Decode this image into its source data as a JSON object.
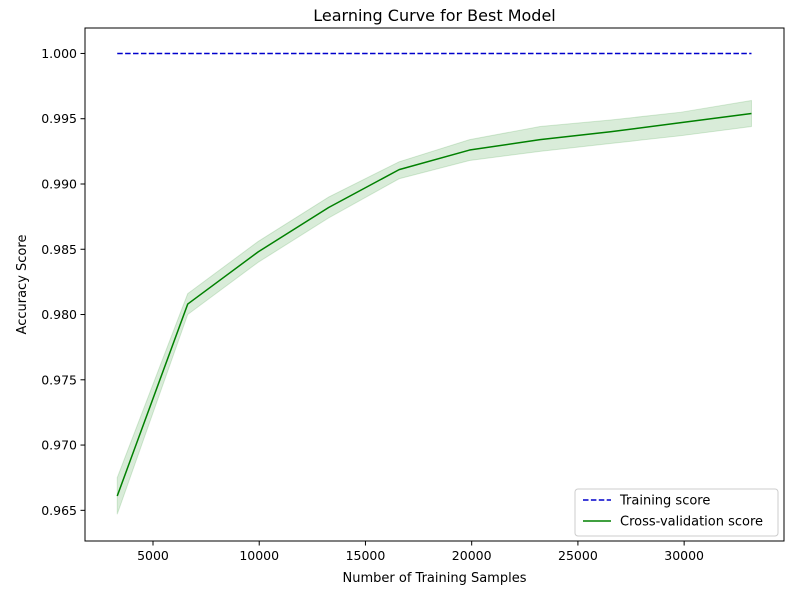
{
  "chart_data": {
    "type": "line",
    "title": "Learning Curve for Best Model",
    "xlabel": "Number of Training Samples",
    "ylabel": "Accuracy Score",
    "xlim": [
      1800,
      34700
    ],
    "ylim": [
      0.96265,
      1.00195
    ],
    "xticks": [
      5000,
      10000,
      15000,
      20000,
      25000,
      30000
    ],
    "xtick_labels": [
      "5000",
      "10000",
      "15000",
      "20000",
      "25000",
      "30000"
    ],
    "yticks": [
      0.965,
      0.97,
      0.975,
      0.98,
      0.985,
      0.99,
      0.995,
      1.0
    ],
    "ytick_labels": [
      "0.965",
      "0.970",
      "0.975",
      "0.980",
      "0.985",
      "0.990",
      "0.995",
      "1.000"
    ],
    "grid": false,
    "legend_position": "lower right",
    "x": [
      3317,
      6634,
      9951,
      13268,
      16585,
      19902,
      23219,
      26536,
      29853,
      33170
    ],
    "series": [
      {
        "name": "Training score",
        "color": "#0000cc",
        "style": "dashed",
        "values": [
          1.0,
          1.0,
          1.0,
          1.0,
          1.0,
          1.0,
          1.0,
          1.0,
          1.0,
          1.0
        ]
      },
      {
        "name": "Cross-validation score",
        "color": "#008000",
        "style": "solid",
        "values": [
          0.9661,
          0.9808,
          0.9848,
          0.9882,
          0.9911,
          0.9926,
          0.9934,
          0.994,
          0.9947,
          0.9954
        ],
        "band_lower": [
          0.9647,
          0.98,
          0.984,
          0.9874,
          0.9904,
          0.9918,
          0.9925,
          0.9931,
          0.9937,
          0.9944
        ],
        "band_upper": [
          0.9675,
          0.9816,
          0.9856,
          0.989,
          0.9917,
          0.9934,
          0.9944,
          0.9949,
          0.9955,
          0.9964
        ],
        "band_color": "#008000"
      }
    ]
  }
}
